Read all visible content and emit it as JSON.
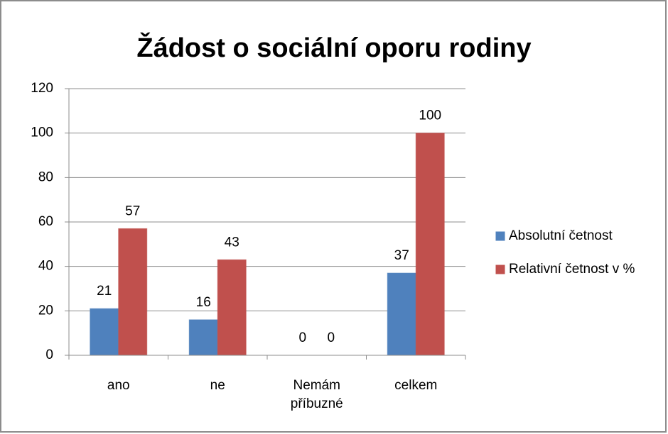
{
  "chart_data": {
    "type": "bar",
    "title": "Žádost o sociální oporu rodiny",
    "categories": [
      "ano",
      "ne",
      "Nemám příbuzné",
      "celkem"
    ],
    "series": [
      {
        "name": "Absolutní četnost",
        "color": "#4f81bd",
        "values": [
          21,
          16,
          0,
          37
        ]
      },
      {
        "name": "Relativní četnost v %",
        "color": "#c0504d",
        "values": [
          57,
          43,
          0,
          100
        ]
      }
    ],
    "ylim": [
      0,
      120
    ],
    "yticks": [
      0,
      20,
      40,
      60,
      80,
      100,
      120
    ],
    "grid": true,
    "legend": "right"
  }
}
